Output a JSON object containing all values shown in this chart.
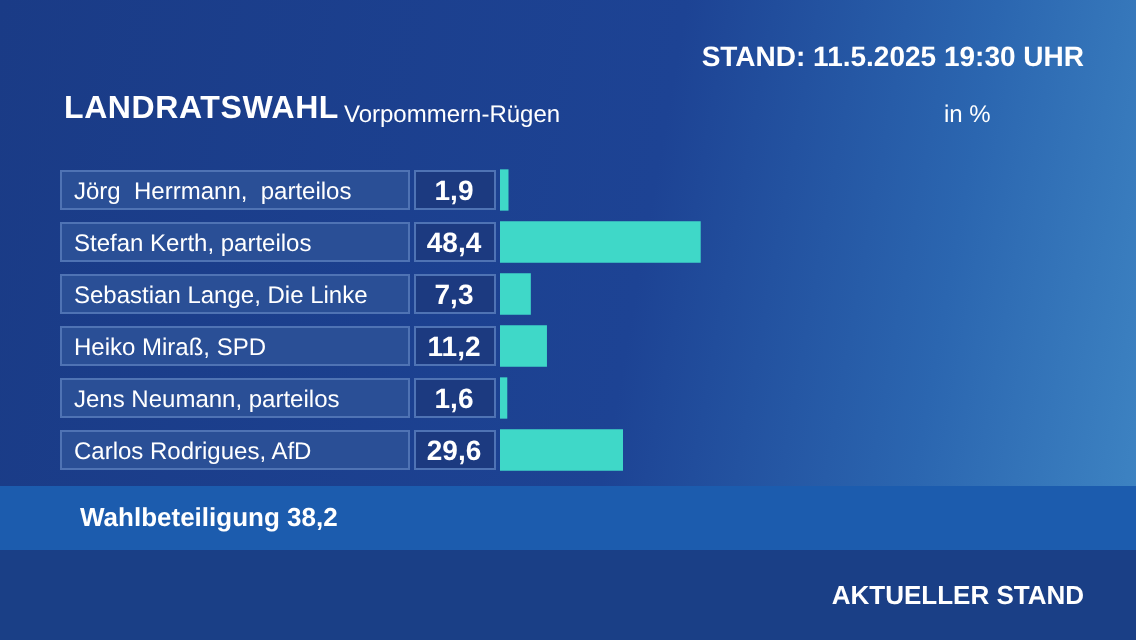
{
  "chart_data": {
    "type": "bar",
    "orientation": "horizontal",
    "title": "LANDRATSWAHL",
    "subtitle": "Vorpommern-Rügen",
    "categories": [
      "Jörg  Herrmann,  parteilos",
      "Stefan Kerth, parteilos",
      "Sebastian Lange, Die Linke",
      "Heiko Miraß, SPD",
      "Jens Neumann, parteilos",
      "Carlos Rodrigues, AfD"
    ],
    "values": [
      1.9,
      48.4,
      7.3,
      11.2,
      1.6,
      29.6
    ],
    "value_labels": [
      "1,9",
      "48,4",
      "7,3",
      "11,2",
      "1,6",
      "29,6"
    ],
    "color": "#3fd8c8",
    "legend": false,
    "tick_labels": false,
    "annotations": [
      "in %",
      "STAND: 11.5.2025 19:30 UHR",
      "Wahlbeteiligung  38,2",
      "AKTUELLER STAND"
    ]
  }
}
